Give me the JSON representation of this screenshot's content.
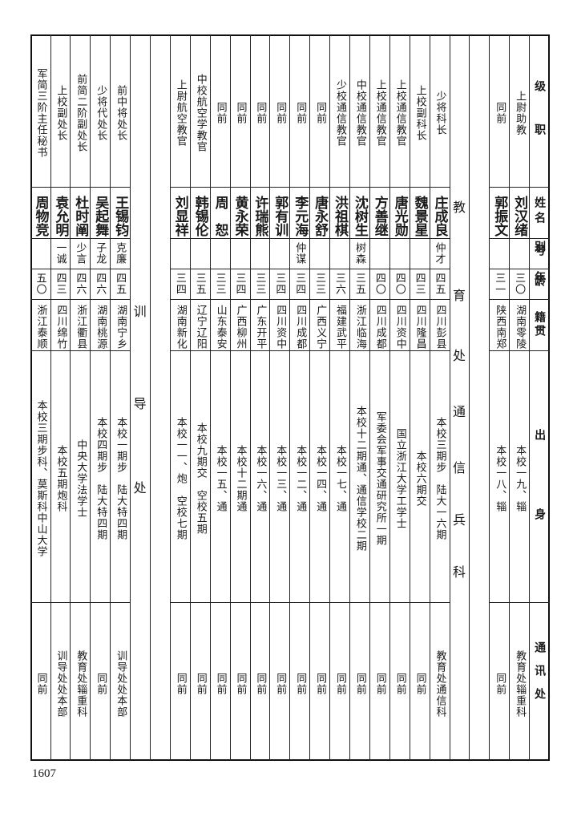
{
  "header": {
    "rank": "级职",
    "name": "姓名",
    "alias": "别号",
    "age": "年龄",
    "origin": "籍贯",
    "background": "出身",
    "address": "通讯处"
  },
  "sections": [
    {
      "title": "教育处通信兵科"
    },
    {
      "title": "训导处"
    }
  ],
  "rows_intro": [
    {
      "rank": "上尉助教",
      "name": "刘汉绪",
      "alias": "",
      "age": "三〇",
      "origin": "湖南零陵",
      "background": "本校一九、辎",
      "address": "教育处辎重科"
    },
    {
      "rank": "同前",
      "name": "郭振文",
      "alias": "",
      "age": "三一",
      "origin": "陕西南郑",
      "background": "本校一八、辎",
      "address": "同前"
    }
  ],
  "rows_signal": [
    {
      "rank": "少将科长",
      "name": "庄成良",
      "alias": "仲才",
      "age": "四五",
      "origin": "四川彭县",
      "background": "本校三期步　陆大一六期",
      "address": "教育处通信科"
    },
    {
      "rank": "上校副科长",
      "name": "魏景星",
      "alias": "",
      "age": "四三",
      "origin": "四川隆昌",
      "background": "本校六期交",
      "address": "同前"
    },
    {
      "rank": "上校通信教官",
      "name": "唐光勋",
      "alias": "",
      "age": "四〇",
      "origin": "四川资中",
      "background": "国立浙江大学工学士",
      "address": "同前"
    },
    {
      "rank": "上校通信教官",
      "name": "方善继",
      "alias": "",
      "age": "四〇",
      "origin": "四川成都",
      "background": "军委会军事交通研究所一期",
      "address": "同前"
    },
    {
      "rank": "中校通信教官",
      "name": "沈树生",
      "alias": "树森",
      "age": "三五",
      "origin": "浙江临海",
      "background": "本校十二期通、通信学校二期",
      "address": "同前"
    },
    {
      "rank": "少校通信教官",
      "name": "洪祖棋",
      "alias": "",
      "age": "三六",
      "origin": "福建武平",
      "background": "本校一七、通",
      "address": "同前"
    },
    {
      "rank": "同前",
      "name": "唐永舒",
      "alias": "",
      "age": "三三",
      "origin": "广西义宁",
      "background": "本校一四、通",
      "address": "同前"
    },
    {
      "rank": "同前",
      "name": "李元海",
      "alias": "仲谋",
      "age": "三四",
      "origin": "四川成都",
      "background": "本校一二、通",
      "address": "同前"
    },
    {
      "rank": "同前",
      "name": "郭有训",
      "alias": "",
      "age": "三四",
      "origin": "四川资中",
      "background": "本校一三、通",
      "address": "同前"
    },
    {
      "rank": "同前",
      "name": "许瑞熊",
      "alias": "",
      "age": "三三",
      "origin": "广东开平",
      "background": "本校一六、通",
      "address": "同前"
    },
    {
      "rank": "同前",
      "name": "黄永荣",
      "alias": "",
      "age": "三四",
      "origin": "广西柳州",
      "background": "本校十二期通",
      "address": "同前"
    },
    {
      "rank": "同前",
      "name": "周　恕",
      "alias": "",
      "age": "三三",
      "origin": "山东泰安",
      "background": "本校一五、通",
      "address": "同前"
    },
    {
      "rank": "中校航空学教官",
      "name": "韩锡伦",
      "alias": "",
      "age": "三五",
      "origin": "辽宁辽阳",
      "background": "本校九期交　空校五期",
      "address": "同前"
    },
    {
      "rank": "上尉航空教官",
      "name": "刘显祥",
      "alias": "",
      "age": "三四",
      "origin": "湖南新化",
      "background": "本校一一、炮　空校七期",
      "address": "同前"
    }
  ],
  "rows_training": [
    {
      "rank": "前中将处长",
      "name": "王锡钧",
      "alias": "克廉",
      "age": "四五",
      "origin": "湖南宁乡",
      "background": "本校一期步　陆大特四期",
      "address": "训导处处本部"
    },
    {
      "rank": "少将代处长",
      "name": "吴起舞",
      "alias": "子龙",
      "age": "四六",
      "origin": "湖南桃源",
      "background": "本校四期步　陆大特四期",
      "address": "同前"
    },
    {
      "rank": "前简二阶副处长",
      "name": "杜时阐",
      "alias": "少言",
      "age": "四六",
      "origin": "浙江衢县",
      "background": "中央大学法学士",
      "address": "教育处辎重科"
    },
    {
      "rank": "上校副处长",
      "name": "袁允明",
      "alias": "一诚",
      "age": "四三",
      "origin": "四川绵竹",
      "background": "本校五期炮科",
      "address": "训导处处本部"
    },
    {
      "rank": "军简三阶主任秘书",
      "name": "周物竞",
      "alias": "",
      "age": "五〇",
      "origin": "浙江泰顺",
      "background": "本校三期步科、莫斯科中山大学",
      "address": "同前"
    }
  ],
  "page_number": "1607"
}
